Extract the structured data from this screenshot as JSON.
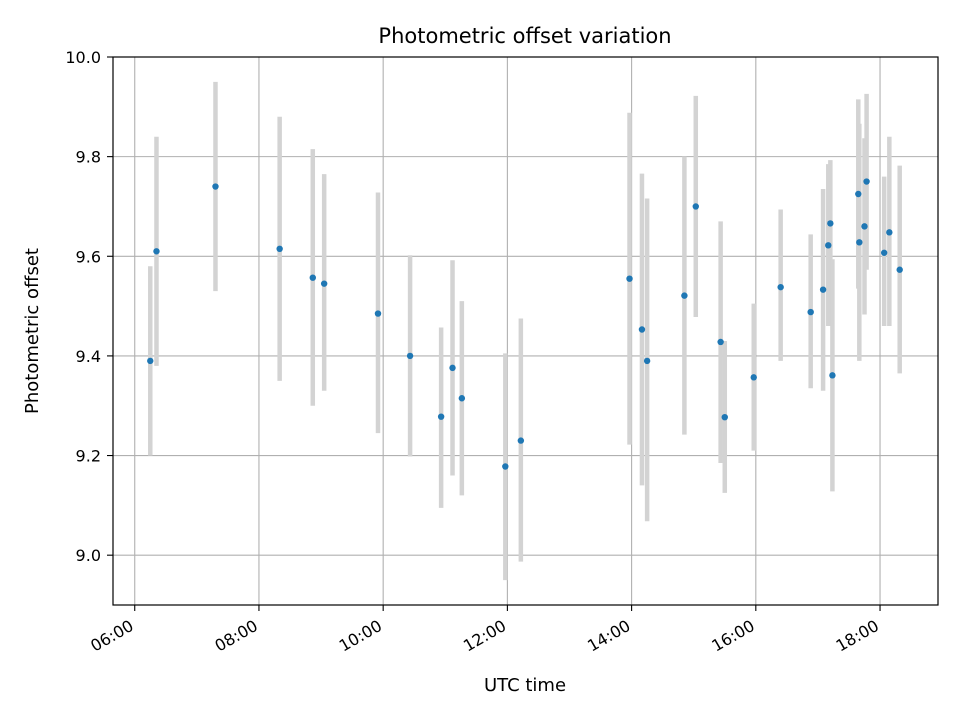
{
  "chart_data": {
    "type": "scatter",
    "title": "Photometric offset variation",
    "xlabel": "UTC time",
    "ylabel": "Photometric offset",
    "x_tick_labels": [
      "06:00",
      "08:00",
      "10:00",
      "12:00",
      "14:00",
      "16:00",
      "18:00"
    ],
    "y_tick_labels": [
      "9.0",
      "9.2",
      "9.4",
      "9.6",
      "9.8",
      "10.0"
    ],
    "xlim": [
      "05:39",
      "18:56"
    ],
    "ylim": [
      8.9,
      10.0
    ],
    "grid": true,
    "point_color": "#1f77b4",
    "errorbar_color": "#d3d3d3",
    "points": [
      {
        "x": "06:15",
        "y": 9.39,
        "yerr_low": 9.2,
        "yerr_high": 9.58
      },
      {
        "x": "06:21",
        "y": 9.61,
        "yerr_low": 9.38,
        "yerr_high": 9.84
      },
      {
        "x": "07:18",
        "y": 9.74,
        "yerr_low": 9.53,
        "yerr_high": 9.95
      },
      {
        "x": "08:20",
        "y": 9.615,
        "yerr_low": 9.35,
        "yerr_high": 9.88
      },
      {
        "x": "08:52",
        "y": 9.557,
        "yerr_low": 9.3,
        "yerr_high": 9.815
      },
      {
        "x": "09:03",
        "y": 9.545,
        "yerr_low": 9.33,
        "yerr_high": 9.765
      },
      {
        "x": "09:55",
        "y": 9.485,
        "yerr_low": 9.245,
        "yerr_high": 9.728
      },
      {
        "x": "10:26",
        "y": 9.4,
        "yerr_low": 9.198,
        "yerr_high": 9.602
      },
      {
        "x": "10:56",
        "y": 9.278,
        "yerr_low": 9.095,
        "yerr_high": 9.457
      },
      {
        "x": "11:07",
        "y": 9.376,
        "yerr_low": 9.16,
        "yerr_high": 9.592
      },
      {
        "x": "11:16",
        "y": 9.315,
        "yerr_low": 9.12,
        "yerr_high": 9.51
      },
      {
        "x": "11:58",
        "y": 9.178,
        "yerr_low": 8.95,
        "yerr_high": 9.405
      },
      {
        "x": "12:13",
        "y": 9.23,
        "yerr_low": 8.987,
        "yerr_high": 9.475
      },
      {
        "x": "13:58",
        "y": 9.555,
        "yerr_low": 9.222,
        "yerr_high": 9.888
      },
      {
        "x": "14:10",
        "y": 9.453,
        "yerr_low": 9.14,
        "yerr_high": 9.766
      },
      {
        "x": "14:15",
        "y": 9.39,
        "yerr_low": 9.068,
        "yerr_high": 9.716
      },
      {
        "x": "14:51",
        "y": 9.521,
        "yerr_low": 9.242,
        "yerr_high": 9.8
      },
      {
        "x": "15:02",
        "y": 9.7,
        "yerr_low": 9.478,
        "yerr_high": 9.922
      },
      {
        "x": "15:26",
        "y": 9.428,
        "yerr_low": 9.185,
        "yerr_high": 9.67
      },
      {
        "x": "15:30",
        "y": 9.277,
        "yerr_low": 9.125,
        "yerr_high": 9.43
      },
      {
        "x": "15:58",
        "y": 9.357,
        "yerr_low": 9.21,
        "yerr_high": 9.505
      },
      {
        "x": "16:24",
        "y": 9.538,
        "yerr_low": 9.39,
        "yerr_high": 9.694
      },
      {
        "x": "16:53",
        "y": 9.488,
        "yerr_low": 9.335,
        "yerr_high": 9.644
      },
      {
        "x": "17:05",
        "y": 9.533,
        "yerr_low": 9.33,
        "yerr_high": 9.735
      },
      {
        "x": "17:10",
        "y": 9.622,
        "yerr_low": 9.46,
        "yerr_high": 9.785
      },
      {
        "x": "17:12",
        "y": 9.666,
        "yerr_low": 9.54,
        "yerr_high": 9.793
      },
      {
        "x": "17:14",
        "y": 9.361,
        "yerr_low": 9.128,
        "yerr_high": 9.594
      },
      {
        "x": "17:39",
        "y": 9.725,
        "yerr_low": 9.535,
        "yerr_high": 9.915
      },
      {
        "x": "17:40",
        "y": 9.628,
        "yerr_low": 9.39,
        "yerr_high": 9.866
      },
      {
        "x": "17:45",
        "y": 9.66,
        "yerr_low": 9.483,
        "yerr_high": 9.837
      },
      {
        "x": "17:47",
        "y": 9.75,
        "yerr_low": 9.573,
        "yerr_high": 9.926
      },
      {
        "x": "18:04",
        "y": 9.607,
        "yerr_low": 9.46,
        "yerr_high": 9.76
      },
      {
        "x": "18:09",
        "y": 9.648,
        "yerr_low": 9.46,
        "yerr_high": 9.84
      },
      {
        "x": "18:19",
        "y": 9.573,
        "yerr_low": 9.365,
        "yerr_high": 9.782
      }
    ]
  }
}
